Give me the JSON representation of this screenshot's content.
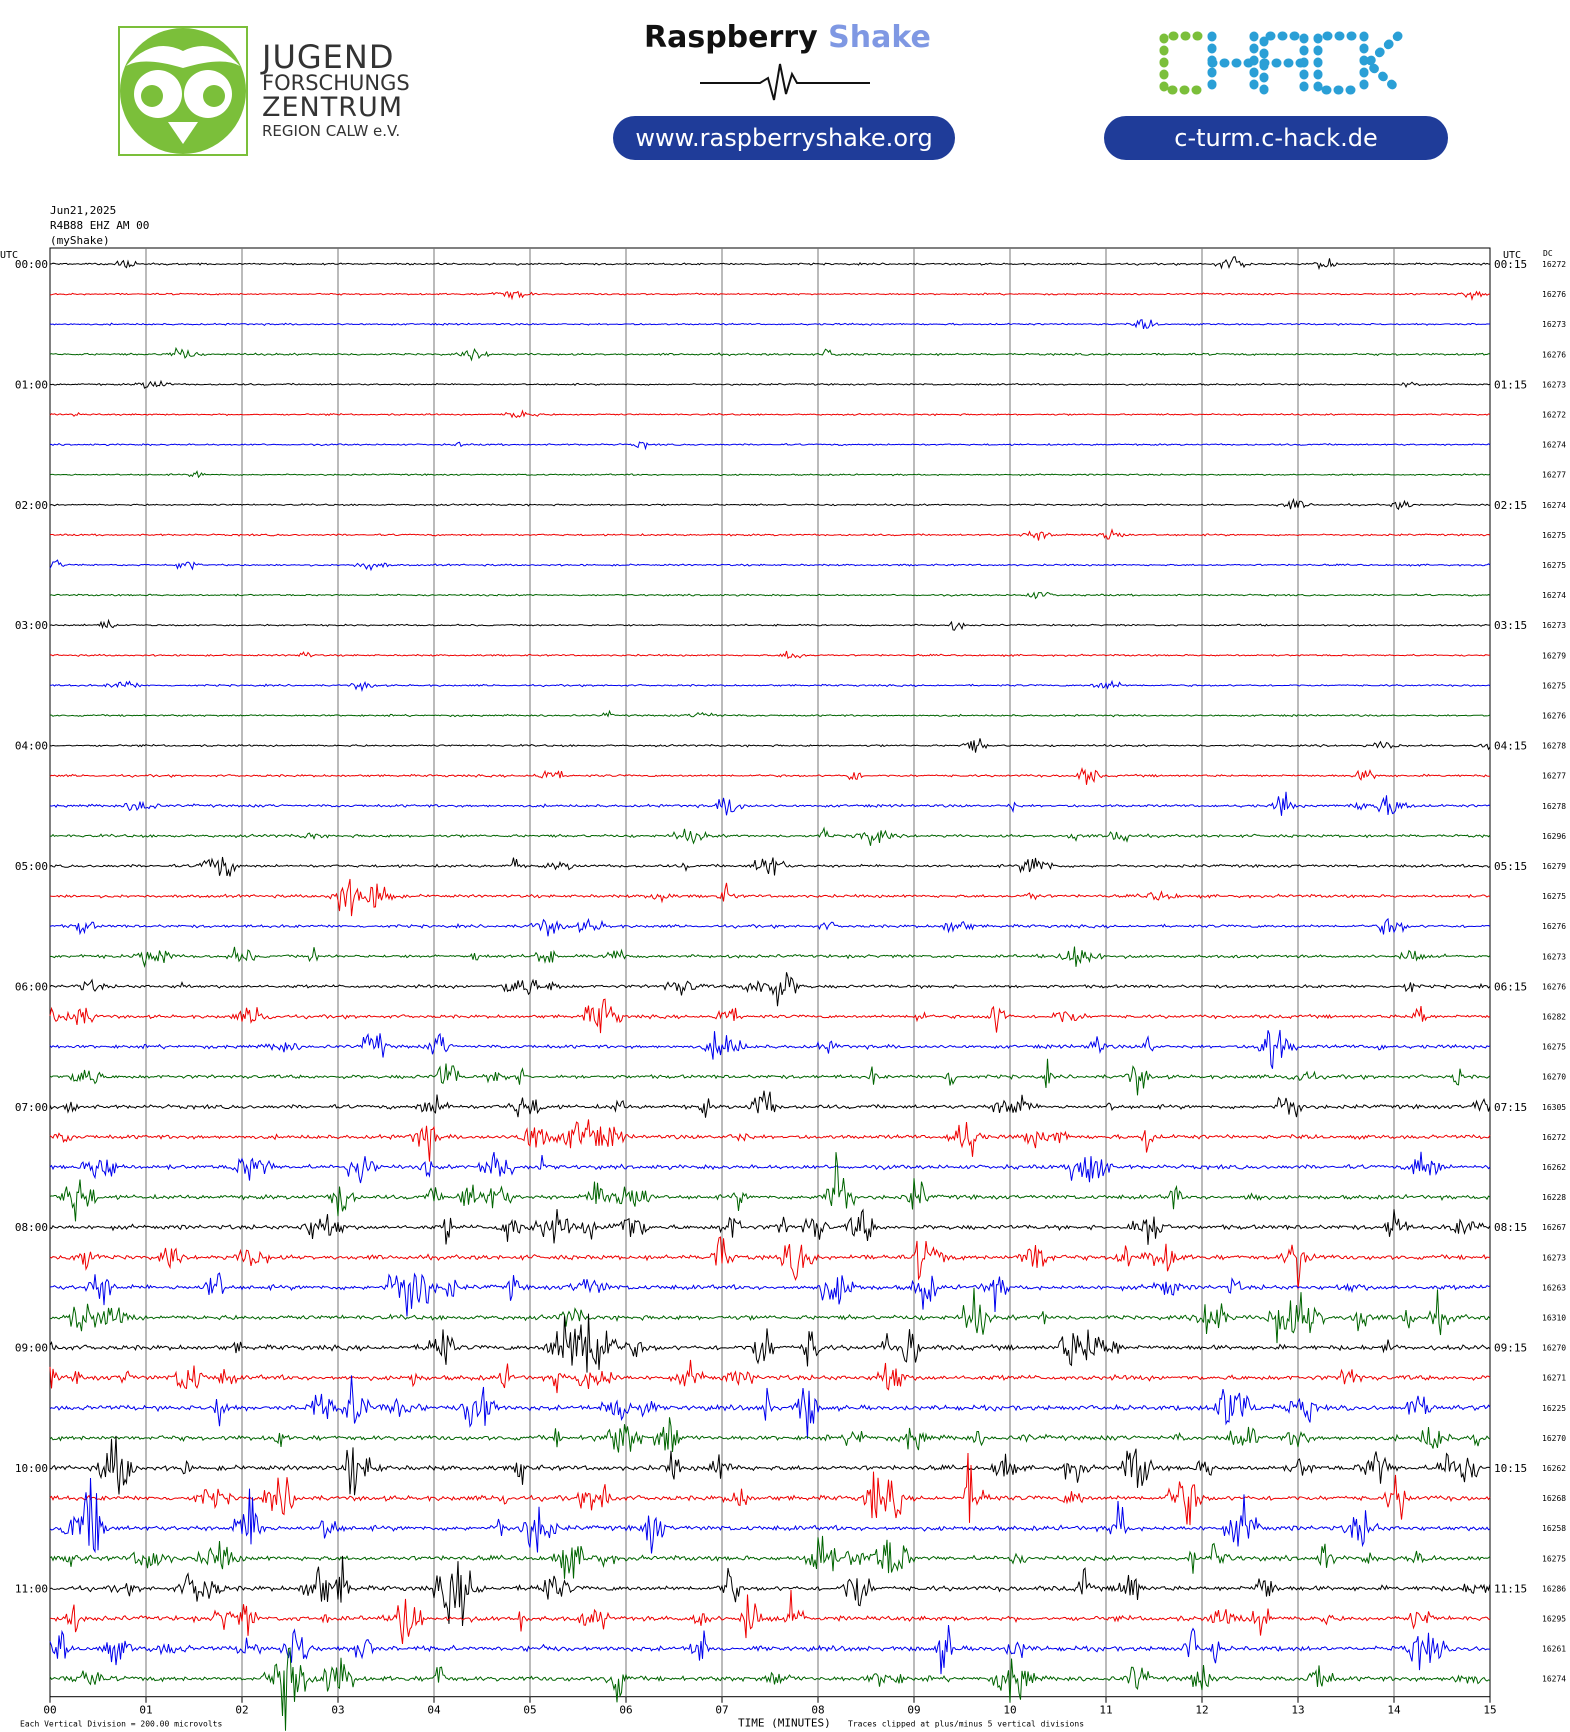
{
  "header": {
    "jfz_logo": {
      "icon": "owl-logo-icon",
      "color": "#7bbf3a",
      "line1": "JUGEND",
      "line2": "FORSCHUNGS",
      "line3": "ZENTRUM",
      "line4": "REGION CALW e.V."
    },
    "raspberry_shake": {
      "word1": "Raspberry",
      "word2": "Shake",
      "url": "www.raspberryshake.org"
    },
    "chack": {
      "logo_text": "CHACK",
      "url": "c-turm.c-hack.de"
    }
  },
  "meta": {
    "date": "Jun21,2025",
    "station": "R4B88 EHZ AM 00",
    "network": "(myShake)"
  },
  "chart_data": {
    "type": "line",
    "title": "",
    "left_axis_label": "UTC",
    "right_axis_label": "UTC",
    "dc_label": "DC",
    "xlabel": "TIME (MINUTES)",
    "xlim": [
      0,
      15
    ],
    "x_ticks": [
      "00",
      "01",
      "02",
      "03",
      "04",
      "05",
      "06",
      "07",
      "08",
      "09",
      "10",
      "11",
      "12",
      "13",
      "14",
      "15"
    ],
    "trace_colors": [
      "#000000",
      "#ee0000",
      "#0000ee",
      "#006400"
    ],
    "rows_per_hour": 4,
    "left_hour_labels": [
      "00:00",
      "01:00",
      "02:00",
      "03:00",
      "04:00",
      "05:00",
      "06:00",
      "07:00",
      "08:00",
      "09:00",
      "10:00",
      "11:00"
    ],
    "right_hour_labels": [
      "00:15",
      "01:15",
      "02:15",
      "03:15",
      "04:15",
      "05:15",
      "06:15",
      "07:15",
      "08:15",
      "09:15",
      "10:15",
      "11:15"
    ],
    "dc_values": [
      "16272",
      "16276",
      "16273",
      "16276",
      "16273",
      "16272",
      "16274",
      "16277",
      "16274",
      "16275",
      "16275",
      "16274",
      "16273",
      "16279",
      "16275",
      "16276",
      "16278",
      "16277",
      "16278",
      "16296",
      "16279",
      "16275",
      "16276",
      "16273",
      "16276",
      "16282",
      "16275",
      "16270",
      "16305",
      "16272",
      "16262",
      "16228",
      "16267",
      "16273",
      "16263",
      "16310",
      "16270",
      "16271",
      "16225",
      "16270",
      "16262",
      "16268",
      "16258",
      "16275",
      "16286",
      "16295",
      "16261",
      "16274"
    ],
    "activity_level": [
      0.6,
      0.3,
      0.45,
      0.9,
      0.4,
      0.3,
      0.4,
      0.2,
      0.4,
      0.6,
      0.5,
      0.45,
      0.4,
      0.5,
      0.6,
      0.6,
      0.8,
      1.2,
      1.8,
      2.0,
      2.0,
      2.2,
      2.2,
      2.4,
      2.6,
      2.8,
      3.0,
      3.2,
      3.6,
      3.8,
      4.0,
      4.0,
      4.4,
      4.6,
      4.6,
      4.6,
      5.0,
      5.0,
      5.0,
      4.8,
      5.0,
      5.0,
      5.0,
      4.8,
      5.0,
      5.0,
      4.8,
      4.8
    ],
    "footer_left": "Each Vertical Division =  200.00 microvolts",
    "footer_right": "Traces clipped at plus/minus 5 vertical divisions"
  }
}
